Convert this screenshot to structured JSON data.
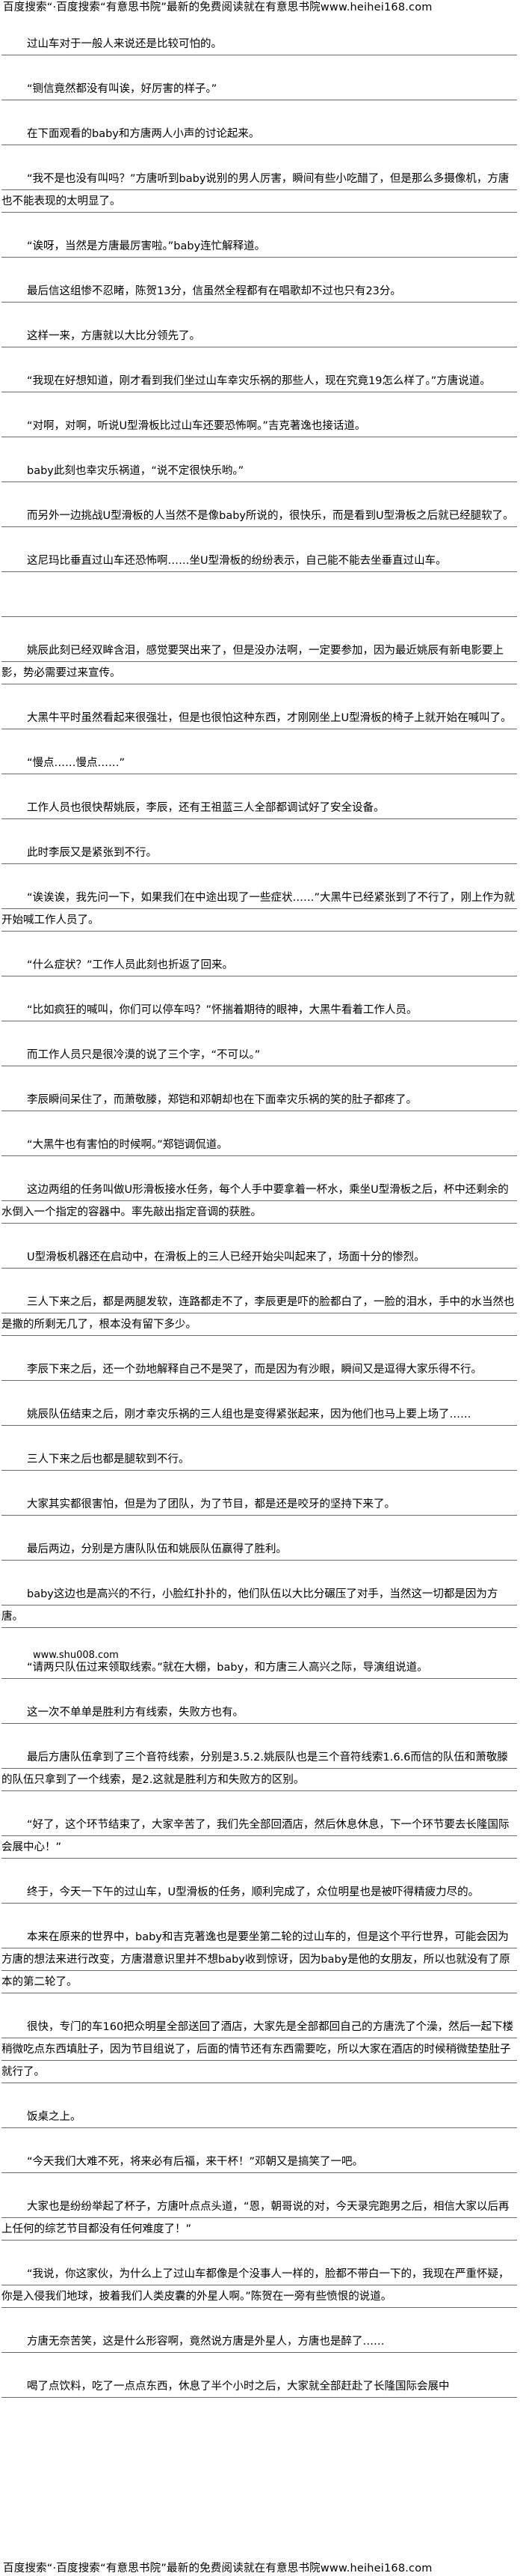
{
  "banner_text": "百度搜索“·百度搜索“有意思书院”最新的免费阅读就在有意思书院www.heihei168.com",
  "inline_site": "www.shu008.com",
  "paragraphs": [
    "过山车对于一般人来说还是比较可怕的。",
    "“铡信竟然都没有叫诶，好厉害的样子。”",
    "在下面观看的baby和方唐两人小声的讨论起来。",
    "“我不是也没有叫吗？”方唐听到baby说别的男人厉害，瞬间有些小吃醋了，但是那么多摄像机，方唐也不能表现的太明显了。",
    "“诶呀，当然是方唐最厉害啦。”baby连忙解释道。",
    "最后信这组惨不忍睹，陈贺13分，信虽然全程都有在唱歌却不过也只有23分。",
    "这样一来，方唐就以大比分领先了。",
    "“我现在好想知道，刚才看到我们坐过山车幸灾乐祸的那些人，现在究竟19怎么样了。”方唐说道。",
    "“对啊，对啊，听说U型滑板比过山车还要恐怖啊。”吉克著逸也接话道。",
    "baby此刻也幸灾乐祸道，“说不定很快乐哟。”",
    "而另外一边挑战U型滑板的人当然不是像baby所说的，很快乐，而是看到U型滑板之后就已经腿软了。",
    "这尼玛比垂直过山车还恐怖啊……坐U型滑板的纷纷表示，自己能不能去坐垂直过山车。",
    "",
    "姚辰此刻已经双眸含泪，感觉要哭出来了，但是没办法啊，一定要参加，因为最近姚辰有新电影要上影，势必需要过来宣传。",
    "大黑牛平时虽然看起来很强壮，但是也很怕这种东西，才刚刚坐上U型滑板的椅子上就开始在喊叫了。",
    "“慢点……慢点……”",
    "工作人员也很快帮姚辰，李辰，还有王祖蓝三人全部都调试好了安全设备。",
    "此时李辰又是紧张到不行。",
    "“诶诶诶，我先问一下，如果我们在中途出现了一些症状……”大黑牛已经紧张到了不行了，刚上作为就开始喊工作人员了。",
    "“什么症状？”工作人员此刻也折返了回来。",
    "“比如疯狂的喊叫，你们可以停车吗？”怀揣着期待的眼神，大黑牛看着工作人员。",
    "而工作人员只是很冷漠的说了三个字，“不可以。”",
    "李辰瞬间呆住了，而萧敬滕，郑铠和邓朝却也在下面幸灾乐祸的笑的肚子都疼了。",
    "“大黑牛也有害怕的时候啊。”郑铠调侃道。",
    "这边两组的任务叫做U形滑板接水任务，每个人手中要拿着一杯水，乘坐U型滑板之后，杯中还剩余的水倒入一个指定的容器中。率先敲出指定音调的获胜。",
    "U型滑板机器还在启动中，在滑板上的三人已经开始尖叫起来了，场面十分的惨烈。",
    "三人下来之后，都是两腿发软，连路都走不了，李辰更是吓的脸都白了，一脸的泪水，手中的水当然也是撒的所剩无几了，根本没有留下多少。",
    "李辰下来之后，还一个劲地解释自己不是哭了，而是因为有沙眼，瞬间又是逗得大家乐得不行。",
    "姚辰队伍结束之后，刚才幸灾乐祸的三人组也是变得紧张起来，因为他们也马上要上场了……",
    "三人下来之后也都是腿软到不行。",
    "大家其实都很害怕，但是为了团队，为了节目，都是还是咬牙的坚持下来了。",
    "最后两边，分别是方唐队队伍和姚辰队伍赢得了胜利。",
    "baby这边也是高兴的不行，小脸红扑扑的，他们队伍以大比分碾压了对手，当然这一切都是因为方唐。",
    "“请两只队伍过来领取线索。”就在大棚，baby，和方唐三人高兴之际，导演组说道。",
    "这一次不单单是胜利方有线索，失败方也有。",
    "最后方唐队伍拿到了三个音符线索，分别是3.5.2.姚辰队也是三个音符线索1.6.6而信的队伍和萧敬滕的队伍只拿到了一个线索，是2.这就是胜利方和失败方的区别。",
    "“好了，这个环节结束了，大家辛苦了，我们先全部回酒店，然后休息休息，下一个环节要去长隆国际会展中心！”",
    "终于，今天一下午的过山车，U型滑板的任务，顺利完成了，众位明星也是被吓得精疲力尽的。",
    "本来在原来的世界中，baby和吉克著逸也是要坐第二轮的过山车的，但是这个平行世界，可能会因为方唐的想法来进行改变，方唐潜意识里并不想baby收到惊讶，因为baby是他的女朋友，所以也就没有了原本的第二轮了。",
    "很快，专门的车160把众明星全部送回了酒店，大家先是全部都回自己的方唐洗了个澡，然后一起下楼稍微吃点东西填肚子，因为节目组说了，后面的情节还有东西需要吃，所以大家在酒店的时候稍微垫垫肚子就行了。",
    "饭桌之上。",
    "“今天我们大难不死，将来必有后福，来干杯！”邓朝又是搞笑了一吧。",
    "大家也是纷纷举起了杯子，方唐叶点点头道，“恩，朝哥说的对，今天录完跑男之后，相信大家以后再上任何的综艺节目都没有任何难度了！”",
    "“我说，你这家伙，为什么上了过山车都像是个没事人一样的，脸都不带白一下的，我现在严重怀疑，你是入侵我们地球，披着我们人类皮囊的外星人啊。”陈贺在一旁有些愤恨的说道。",
    "方唐无奈苦笑，这是什么形容啊，竟然说方唐是外星人，方唐也是醉了……",
    "喝了点饮料，吃了一点点东西，休息了半个小时之后，大家就全部赶赴了长隆国际会展中"
  ]
}
